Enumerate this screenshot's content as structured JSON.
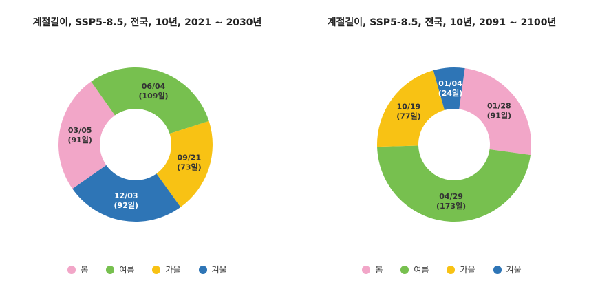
{
  "chart_data": [
    {
      "type": "pie",
      "title": "계절길이, SSP5-8.5, 전국, 10년, 2021 ~ 2030년",
      "categories": [
        "봄",
        "여름",
        "가을",
        "겨울"
      ],
      "values": [
        91,
        109,
        73,
        92
      ],
      "start_dates": [
        "03/05",
        "06/04",
        "09/21",
        "12/03"
      ],
      "value_labels": [
        "(91일)",
        "(109일)",
        "(73일)",
        "(92일)"
      ],
      "colors": [
        "#F2A6C8",
        "#77C04F",
        "#F8C214",
        "#2E75B6"
      ],
      "legend": [
        "봄",
        "여름",
        "가을",
        "겨울"
      ]
    },
    {
      "type": "pie",
      "title": "계절길이, SSP5-8.5, 전국, 10년, 2091 ~ 2100년",
      "categories": [
        "봄",
        "여름",
        "가을",
        "겨울"
      ],
      "values": [
        91,
        173,
        77,
        24
      ],
      "start_dates": [
        "01/28",
        "04/29",
        "10/19",
        "01/04"
      ],
      "value_labels": [
        "(91일)",
        "(173일)",
        "(77일)",
        "(24일)"
      ],
      "colors": [
        "#F2A6C8",
        "#77C04F",
        "#F8C214",
        "#2E75B6"
      ],
      "legend": [
        "봄",
        "여름",
        "가을",
        "겨울"
      ]
    }
  ]
}
